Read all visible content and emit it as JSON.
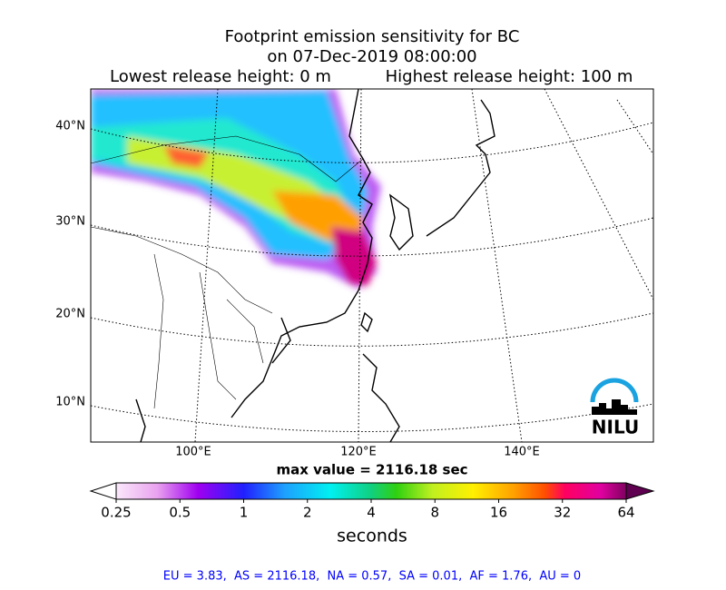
{
  "header": {
    "title_line1": "Footprint emission sensitivity for BC",
    "title_line2": "on 07-Dec-2019 08:00:00",
    "lowest": "Lowest release height: 0 m",
    "highest": "Highest release height: 100 m"
  },
  "map": {
    "lat_labels": [
      "40°N",
      "30°N",
      "20°N",
      "10°N"
    ],
    "lon_labels": [
      "100°E",
      "120°E",
      "140°E"
    ],
    "logo": "NILU"
  },
  "max_value": "max value = 2116.18 sec",
  "colorbar": {
    "ticks": [
      0.25,
      0.5,
      1,
      2,
      4,
      8,
      16,
      32,
      64
    ],
    "scale": "log",
    "label": "seconds"
  },
  "footer": "EU = 3.83,  AS = 2116.18,  NA = 0.57,  SA = 0.01,  AF = 1.76,  AU = 0"
}
